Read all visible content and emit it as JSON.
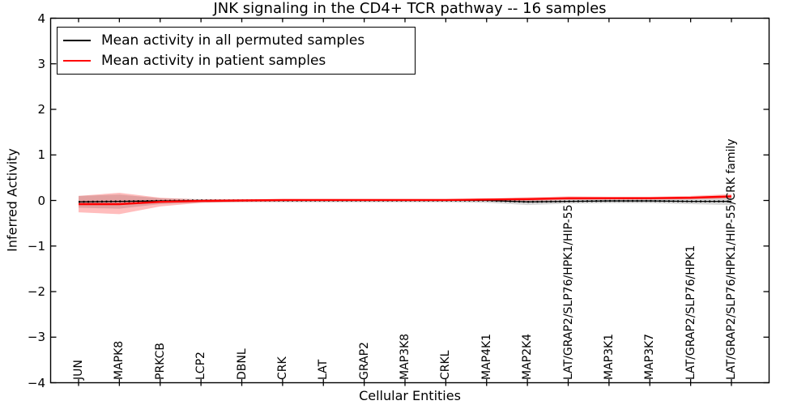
{
  "chart_data": {
    "type": "line",
    "title": "JNK signaling in the CD4+ TCR pathway -- 16 samples",
    "xlabel": "Cellular Entities",
    "ylabel": "Inferred Activity",
    "ylim": [
      -4,
      4
    ],
    "yticks": [
      4,
      3,
      2,
      1,
      0,
      -1,
      -2,
      -3,
      -4
    ],
    "grid": false,
    "legend_position": "upper left",
    "categories": [
      "JUN",
      "MAPK8",
      "PRKCB",
      "LCP2",
      "DBNL",
      "CRK",
      "LAT",
      "GRAP2",
      "MAP3K8",
      "CRKL",
      "MAP4K1",
      "MAP2K4",
      "LAT/GRAP2/SLP76/HPK1/HIP-55",
      "MAP3K1",
      "MAP3K7",
      "LAT/GRAP2/SLP76/HPK1",
      "LAT/GRAP2/SLP76/HPK1/HIP-55/CRK family"
    ],
    "series": [
      {
        "name": "Mean activity in all permuted samples",
        "color": "#000000",
        "style": "solid-with-dotted-overlay",
        "values": [
          -0.03,
          -0.02,
          -0.01,
          0.0,
          0.0,
          0.0,
          0.0,
          0.0,
          0.0,
          0.0,
          0.0,
          -0.03,
          -0.02,
          -0.01,
          -0.01,
          -0.02,
          -0.02
        ]
      },
      {
        "name": "Mean activity in patient samples",
        "color": "#ff0000",
        "style": "solid",
        "values": [
          -0.08,
          -0.08,
          -0.03,
          -0.01,
          0.0,
          0.01,
          0.01,
          0.01,
          0.01,
          0.01,
          0.02,
          0.03,
          0.05,
          0.05,
          0.05,
          0.06,
          0.09
        ]
      }
    ],
    "bands": [
      {
        "name": "permuted samples spread",
        "color": "#999999",
        "opacity": 0.4,
        "upper": [
          0.1,
          0.13,
          0.05,
          0.03,
          0.03,
          0.03,
          0.03,
          0.03,
          0.03,
          0.03,
          0.04,
          0.05,
          0.06,
          0.05,
          0.05,
          0.07,
          0.09
        ],
        "lower": [
          -0.16,
          -0.18,
          -0.08,
          -0.05,
          -0.04,
          -0.04,
          -0.04,
          -0.04,
          -0.04,
          -0.04,
          -0.05,
          -0.1,
          -0.07,
          -0.06,
          -0.06,
          -0.08,
          -0.1
        ]
      },
      {
        "name": "patient samples spread",
        "color": "#ff3333",
        "opacity": 0.32,
        "upper": [
          0.1,
          0.17,
          0.06,
          0.02,
          0.02,
          0.02,
          0.03,
          0.03,
          0.03,
          0.03,
          0.04,
          0.07,
          0.09,
          0.08,
          0.08,
          0.1,
          0.14
        ],
        "lower": [
          -0.26,
          -0.3,
          -0.13,
          -0.05,
          -0.03,
          -0.02,
          -0.01,
          -0.01,
          -0.01,
          -0.01,
          0.0,
          -0.01,
          0.01,
          0.02,
          0.02,
          0.03,
          0.04
        ]
      }
    ]
  }
}
